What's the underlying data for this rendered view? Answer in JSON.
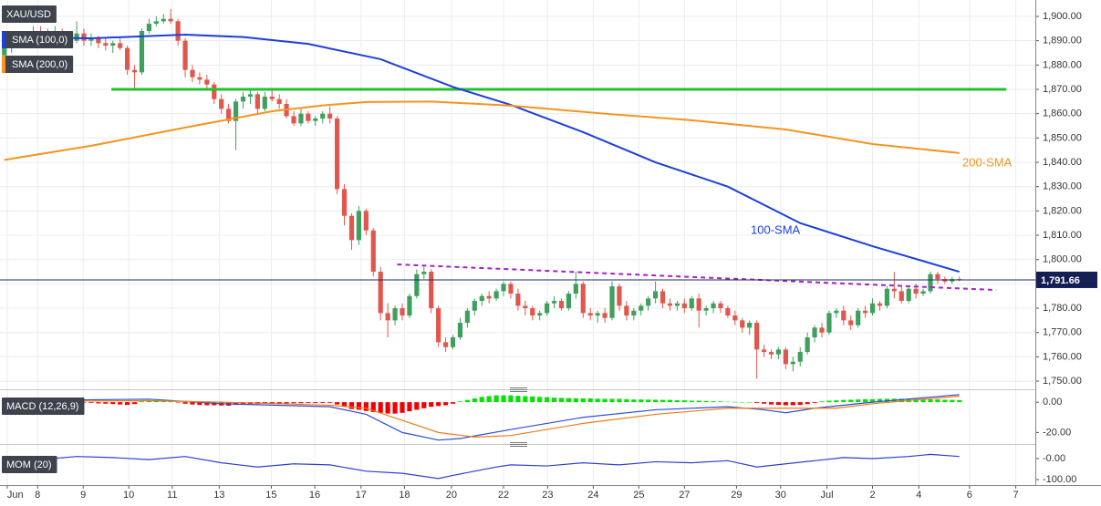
{
  "chart_data": [
    {
      "type": "candlestick",
      "title": "XAU/USD",
      "x": [
        0,
        1,
        2,
        3,
        4,
        5,
        6,
        7,
        8,
        9,
        10,
        11,
        12,
        13,
        14,
        15,
        16,
        17,
        18,
        19,
        20,
        21,
        22,
        23,
        24,
        25,
        26,
        27,
        28,
        29,
        30,
        31,
        32,
        33,
        34,
        35,
        36,
        37,
        38,
        39,
        40,
        41,
        42,
        43,
        44,
        45,
        46,
        47,
        48,
        49,
        50,
        51,
        52,
        53,
        54,
        55,
        56,
        57,
        58,
        59,
        60,
        61,
        62,
        63,
        64,
        65,
        66,
        67,
        68,
        69,
        70,
        71,
        72,
        73,
        74,
        75,
        76,
        77,
        78,
        79,
        80,
        81,
        82,
        83,
        84,
        85,
        86,
        87,
        88,
        89,
        90,
        91,
        92,
        93,
        94,
        95,
        96,
        97,
        98,
        99,
        100,
        101,
        102,
        103,
        104,
        105,
        106,
        107,
        108,
        109,
        110,
        111,
        112,
        113,
        114,
        115,
        116,
        117,
        118,
        119,
        120,
        121,
        122,
        123,
        124,
        125,
        126,
        127,
        128,
        129,
        130,
        131,
        132
      ],
      "up_color": "#3f9f5d",
      "down_color": "#e0574d",
      "open": [
        1884,
        1887,
        1889,
        1891,
        1893,
        1894,
        1892,
        1893,
        1894,
        1892,
        1890,
        1893,
        1890,
        1891,
        1889,
        1888,
        1889,
        1887,
        1878,
        1877,
        1894,
        1897,
        1898,
        1899,
        1898,
        1890,
        1878,
        1875,
        1874,
        1872,
        1866,
        1862,
        1857,
        1865,
        1867,
        1868,
        1862,
        1867,
        1866,
        1864,
        1859,
        1856,
        1860,
        1857,
        1858,
        1860,
        1858,
        1829,
        1818,
        1808,
        1820,
        1812,
        1795,
        1778,
        1775,
        1780,
        1777,
        1785,
        1794,
        1795,
        1780,
        1766,
        1764,
        1768,
        1774,
        1779,
        1783,
        1785,
        1784,
        1787,
        1790,
        1786,
        1781,
        1780,
        1777,
        1778,
        1782,
        1783,
        1780,
        1786,
        1790,
        1778,
        1777,
        1778,
        1776,
        1789,
        1781,
        1777,
        1779,
        1781,
        1784,
        1787,
        1782,
        1781,
        1782,
        1780,
        1784,
        1779,
        1780,
        1782,
        1780,
        1777,
        1775,
        1772,
        1774,
        1763,
        1762,
        1761,
        1763,
        1757,
        1758,
        1762,
        1768,
        1772,
        1770,
        1778,
        1779,
        1775,
        1773,
        1779,
        1778,
        1782,
        1781,
        1788,
        1787,
        1783,
        1788,
        1786,
        1787,
        1794,
        1792,
        1791,
        1792
      ],
      "high": [
        1889,
        1890,
        1893,
        1894,
        1896,
        1896,
        1895,
        1896,
        1895,
        1894,
        1898,
        1895,
        1893,
        1892,
        1891,
        1890,
        1891,
        1888,
        1880,
        1895,
        1899,
        1900,
        1901,
        1903,
        1899,
        1891,
        1880,
        1877,
        1876,
        1873,
        1868,
        1864,
        1866,
        1869,
        1870,
        1869,
        1869,
        1870,
        1868,
        1866,
        1861,
        1862,
        1861,
        1859,
        1861,
        1863,
        1859,
        1831,
        1819,
        1822,
        1821,
        1813,
        1797,
        1782,
        1781,
        1782,
        1786,
        1796,
        1797,
        1796,
        1781,
        1768,
        1769,
        1776,
        1780,
        1784,
        1786,
        1787,
        1788,
        1791,
        1791,
        1788,
        1783,
        1781,
        1779,
        1783,
        1785,
        1784,
        1787,
        1795,
        1791,
        1780,
        1779,
        1780,
        1791,
        1790,
        1783,
        1780,
        1782,
        1785,
        1791,
        1788,
        1784,
        1783,
        1784,
        1785,
        1786,
        1781,
        1783,
        1783,
        1781,
        1779,
        1776,
        1775,
        1775,
        1765,
        1763,
        1764,
        1764,
        1760,
        1764,
        1770,
        1773,
        1774,
        1779,
        1780,
        1781,
        1777,
        1780,
        1781,
        1784,
        1783,
        1789,
        1795,
        1789,
        1789,
        1790,
        1788,
        1795,
        1795,
        1793,
        1793,
        1793
      ],
      "low": [
        1882,
        1885,
        1887,
        1889,
        1890,
        1891,
        1890,
        1892,
        1891,
        1889,
        1889,
        1888,
        1888,
        1887,
        1886,
        1885,
        1886,
        1876,
        1870,
        1876,
        1893,
        1896,
        1897,
        1897,
        1888,
        1875,
        1873,
        1872,
        1870,
        1864,
        1860,
        1856,
        1845,
        1862,
        1864,
        1860,
        1861,
        1865,
        1862,
        1858,
        1855,
        1855,
        1856,
        1855,
        1856,
        1856,
        1827,
        1814,
        1804,
        1806,
        1810,
        1793,
        1775,
        1768,
        1773,
        1775,
        1776,
        1784,
        1792,
        1778,
        1764,
        1762,
        1763,
        1767,
        1772,
        1777,
        1781,
        1782,
        1783,
        1785,
        1784,
        1779,
        1777,
        1775,
        1775,
        1777,
        1780,
        1779,
        1779,
        1784,
        1776,
        1775,
        1774,
        1774,
        1775,
        1779,
        1775,
        1775,
        1777,
        1779,
        1782,
        1780,
        1779,
        1779,
        1778,
        1779,
        1772,
        1777,
        1778,
        1778,
        1776,
        1773,
        1770,
        1769,
        1751,
        1760,
        1759,
        1759,
        1755,
        1754,
        1756,
        1761,
        1766,
        1768,
        1769,
        1776,
        1773,
        1771,
        1772,
        1776,
        1777,
        1779,
        1780,
        1784,
        1782,
        1782,
        1784,
        1785,
        1786,
        1790,
        1790,
        1790,
        1791
      ],
      "close": [
        1887,
        1889,
        1891,
        1893,
        1894,
        1892,
        1893,
        1894,
        1892,
        1890,
        1893,
        1890,
        1891,
        1889,
        1888,
        1889,
        1887,
        1878,
        1877,
        1894,
        1897,
        1898,
        1899,
        1898,
        1890,
        1878,
        1875,
        1874,
        1872,
        1866,
        1862,
        1857,
        1865,
        1867,
        1868,
        1862,
        1867,
        1866,
        1864,
        1859,
        1856,
        1860,
        1857,
        1858,
        1860,
        1858,
        1829,
        1818,
        1808,
        1820,
        1812,
        1795,
        1778,
        1775,
        1780,
        1777,
        1785,
        1794,
        1795,
        1780,
        1766,
        1764,
        1768,
        1774,
        1779,
        1783,
        1785,
        1784,
        1787,
        1790,
        1786,
        1781,
        1780,
        1777,
        1778,
        1782,
        1783,
        1780,
        1786,
        1790,
        1778,
        1777,
        1778,
        1776,
        1789,
        1781,
        1777,
        1779,
        1781,
        1784,
        1787,
        1782,
        1781,
        1782,
        1780,
        1784,
        1779,
        1780,
        1782,
        1780,
        1777,
        1775,
        1772,
        1774,
        1763,
        1762,
        1761,
        1763,
        1757,
        1758,
        1762,
        1768,
        1772,
        1770,
        1778,
        1779,
        1775,
        1773,
        1779,
        1778,
        1782,
        1781,
        1788,
        1787,
        1783,
        1788,
        1786,
        1787,
        1794,
        1792,
        1791,
        1792,
        1791.66
      ],
      "lines": [
        {
          "name": "SMA (100,0)",
          "label": "100-SMA",
          "color": "#1d3ee0",
          "x": [
            0,
            12,
            25,
            33,
            42,
            52,
            62,
            70,
            80,
            90,
            100,
            110,
            120,
            132
          ],
          "values": [
            1891.5,
            1891,
            1892.5,
            1891.5,
            1888.7,
            1882.4,
            1871,
            1863.6,
            1852.4,
            1840,
            1830,
            1815,
            1805.5,
            1795
          ]
        },
        {
          "name": "SMA (200,0)",
          "label": "200-SMA",
          "color": "#f7931e",
          "x": [
            0,
            12,
            25,
            37,
            44,
            50,
            59,
            70,
            83,
            95,
            108,
            120,
            132
          ],
          "values": [
            1841,
            1846.8,
            1854.3,
            1861,
            1863.4,
            1864.8,
            1865,
            1863.3,
            1860,
            1857.3,
            1853.5,
            1847.5,
            1843.8
          ]
        }
      ],
      "levels": [
        {
          "value": 1870,
          "x": [
            14.8,
            138.5
          ],
          "color": "#22c12e"
        }
      ],
      "trendlines": [
        {
          "x": [
            54.3,
            137.1
          ],
          "values": [
            1798,
            1787.5
          ],
          "color": "#a223c4"
        }
      ],
      "last_price": {
        "value": 1791.66,
        "label": "1,791.66"
      },
      "xlim": [
        -0.6,
        142.5
      ],
      "ylim": [
        1747.4,
        1906.75
      ],
      "grid": true,
      "yticks": [
        {
          "value": 1750,
          "label": "1,750.00"
        },
        {
          "value": 1760,
          "label": "1,760.00"
        },
        {
          "value": 1770,
          "label": "1,770.00"
        },
        {
          "value": 1780,
          "label": "1,780.00"
        },
        {
          "value": 1790,
          "label": "1,790.00"
        },
        {
          "value": 1800,
          "label": "1,800.00"
        },
        {
          "value": 1810,
          "label": "1,810.00"
        },
        {
          "value": 1820,
          "label": "1,820.00"
        },
        {
          "value": 1830,
          "label": "1,830.00"
        },
        {
          "value": 1840,
          "label": "1,840.00"
        },
        {
          "value": 1850,
          "label": "1,850.00"
        },
        {
          "value": 1860,
          "label": "1,860.00"
        },
        {
          "value": 1870,
          "label": "1,870.00"
        },
        {
          "value": 1880,
          "label": "1,880.00"
        },
        {
          "value": 1890,
          "label": "1,890.00"
        },
        {
          "value": 1900,
          "label": "1,900.00"
        }
      ],
      "xticks": [
        {
          "value": 0.4,
          "label": "Jun"
        },
        {
          "value": 4.6,
          "label": "8"
        },
        {
          "value": 10.9,
          "label": "9"
        },
        {
          "value": 17.2,
          "label": "10"
        },
        {
          "value": 23.2,
          "label": "11"
        },
        {
          "value": 29.7,
          "label": "13"
        },
        {
          "value": 36.9,
          "label": "15"
        },
        {
          "value": 42.9,
          "label": "16"
        },
        {
          "value": 49.3,
          "label": "17"
        },
        {
          "value": 55.3,
          "label": "18"
        },
        {
          "value": 61.8,
          "label": "20"
        },
        {
          "value": 69.0,
          "label": "22"
        },
        {
          "value": 75.1,
          "label": "23"
        },
        {
          "value": 81.4,
          "label": "24"
        },
        {
          "value": 87.7,
          "label": "25"
        },
        {
          "value": 94.0,
          "label": "27"
        },
        {
          "value": 101.2,
          "label": "29"
        },
        {
          "value": 107.3,
          "label": "30"
        },
        {
          "value": 113.7,
          "label": "Jul"
        },
        {
          "value": 120.0,
          "label": "2"
        },
        {
          "value": 126.4,
          "label": "4"
        },
        {
          "value": 133.4,
          "label": "6"
        },
        {
          "value": 139.8,
          "label": "7"
        }
      ]
    },
    {
      "type": "macd",
      "title": "MACD (12,26,9)",
      "xlim": [
        -0.6,
        142.5
      ],
      "ylim": [
        -27,
        6.7
      ],
      "yticks": [
        {
          "value": 0,
          "label": "0.00"
        },
        {
          "value": -20,
          "label": "-20.00"
        }
      ],
      "histogram": {
        "up_color": "#00e400",
        "down_color": "#f00000",
        "values": [
          1,
          1,
          0.5,
          0.5,
          0.8,
          0.6,
          0.4,
          0.3,
          0.2,
          0.1,
          0.3,
          -0.3,
          -0.5,
          -0.8,
          -1,
          -1.2,
          -1.5,
          -1.8,
          -1.2,
          0.5,
          1,
          1.2,
          1,
          0.6,
          -0.2,
          -1,
          -1.5,
          -1.8,
          -2,
          -2,
          -2.2,
          -2.3,
          -1.8,
          -1.5,
          -1.3,
          -1.2,
          -1,
          -1,
          -0.8,
          -0.8,
          -0.7,
          -0.7,
          -0.6,
          -0.6,
          -0.5,
          -0.5,
          -1.5,
          -3,
          -4.5,
          -5,
          -5.8,
          -6.5,
          -7,
          -7.5,
          -7.5,
          -7,
          -6,
          -5,
          -4,
          -3,
          -2.5,
          -2,
          -1,
          0.5,
          1.5,
          2.5,
          3.5,
          4,
          4.5,
          4.5,
          4.5,
          4.2,
          4,
          3.8,
          3.5,
          3.3,
          3,
          2.8,
          2.7,
          2.6,
          2.5,
          2.5,
          2.3,
          2.2,
          2.2,
          2.2,
          2,
          1.8,
          1.8,
          1.7,
          1.6,
          1.5,
          1.5,
          1.3,
          1.2,
          1,
          1,
          0.8,
          0.6,
          0.5,
          0.3,
          0.2,
          0.1,
          0.1,
          -0.5,
          -1,
          -1.5,
          -1.8,
          -2,
          -2,
          -1.8,
          -1.2,
          -0.5,
          0.5,
          1,
          1.2,
          1.5,
          1.6,
          1.8,
          2,
          2,
          2.2,
          2.2,
          2.3,
          2.3,
          2.2,
          2,
          2,
          1.8,
          1.8,
          1.6,
          1.5,
          1.4
        ]
      },
      "series": [
        {
          "color": "#2b4ed6",
          "x": [
            0,
            20,
            30,
            45,
            50,
            55,
            60,
            63,
            70,
            80,
            90,
            100,
            105,
            108,
            112,
            120,
            132
          ],
          "values": [
            1,
            2,
            -1,
            -3,
            -8,
            -20,
            -25,
            -24,
            -18,
            -10,
            -5,
            -3,
            -5,
            -7,
            -4,
            0,
            5
          ]
        },
        {
          "color": "#f07c18",
          "x": [
            0,
            20,
            30,
            45,
            50,
            55,
            60,
            65,
            70,
            80,
            90,
            100,
            108,
            115,
            120,
            132
          ],
          "values": [
            0.5,
            1,
            0,
            -2,
            -4,
            -12,
            -20,
            -23,
            -22,
            -14,
            -8,
            -4,
            -4,
            -4,
            -1,
            4
          ]
        }
      ]
    },
    {
      "type": "line",
      "title": "MOM (20)",
      "xlim": [
        -0.6,
        142.5
      ],
      "ylim": [
        -126,
        56.5
      ],
      "yticks": [
        {
          "value": 0,
          "label": "-0.00"
        },
        {
          "value": -100,
          "label": "-100.00"
        }
      ],
      "series": [
        {
          "color": "#2d3fd2",
          "x": [
            0,
            5,
            10,
            15,
            20,
            25,
            30,
            35,
            40,
            45,
            50,
            55,
            60,
            62,
            65,
            68,
            70,
            75,
            80,
            85,
            90,
            95,
            100,
            104,
            108,
            112,
            116,
            120,
            125,
            128,
            132
          ],
          "values": [
            -30,
            -5,
            10,
            5,
            -5,
            10,
            -20,
            -40,
            -25,
            -30,
            -60,
            -70,
            -95,
            -80,
            -60,
            -40,
            -30,
            -35,
            -20,
            -30,
            -15,
            -20,
            -10,
            -40,
            -25,
            -10,
            5,
            0,
            10,
            20,
            10
          ]
        }
      ]
    }
  ]
}
